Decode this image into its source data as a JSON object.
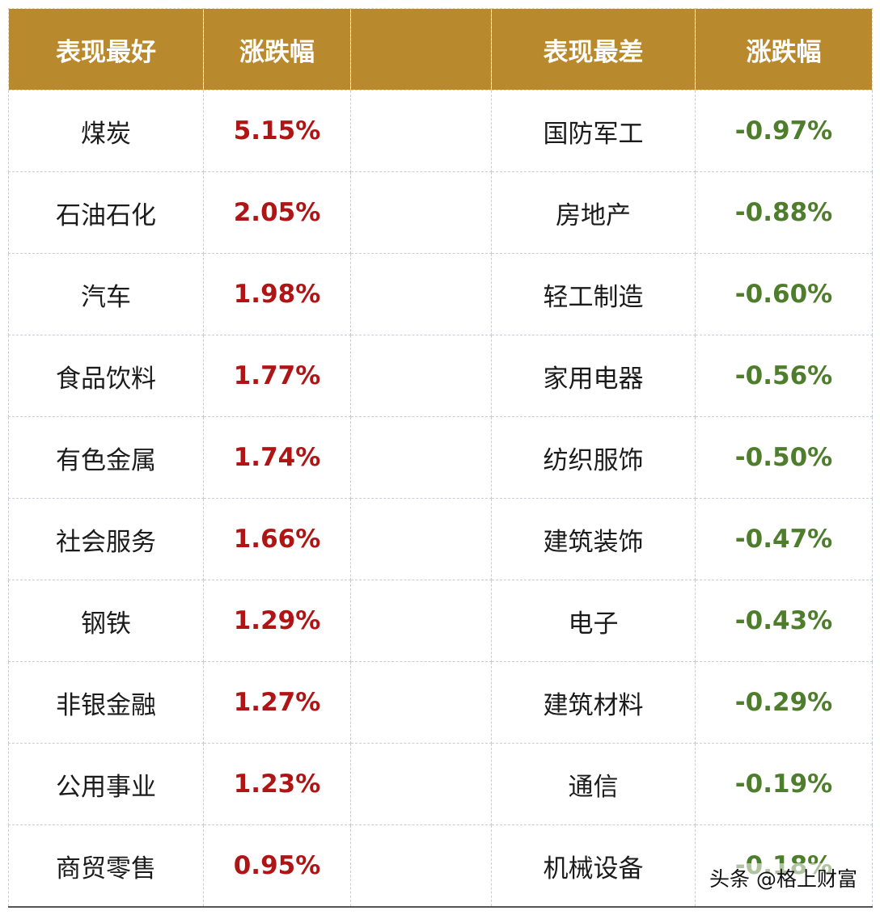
{
  "colors": {
    "header_bg": "#B98A2D",
    "header_text": "#FFFFFF",
    "gain_text": "#B01515",
    "loss_text": "#4E7D2C"
  },
  "headers": {
    "best": "表现最好",
    "best_change": "涨跌幅",
    "blank": "",
    "worst": "表现最差",
    "worst_change": "涨跌幅"
  },
  "rows": [
    {
      "best": "煤炭",
      "best_change": "5.15%",
      "worst": "国防军工",
      "worst_change": "-0.97%"
    },
    {
      "best": "石油石化",
      "best_change": "2.05%",
      "worst": "房地产",
      "worst_change": "-0.88%"
    },
    {
      "best": "汽车",
      "best_change": "1.98%",
      "worst": "轻工制造",
      "worst_change": "-0.60%"
    },
    {
      "best": "食品饮料",
      "best_change": "1.77%",
      "worst": "家用电器",
      "worst_change": "-0.56%"
    },
    {
      "best": "有色金属",
      "best_change": "1.74%",
      "worst": "纺织服饰",
      "worst_change": "-0.50%"
    },
    {
      "best": "社会服务",
      "best_change": "1.66%",
      "worst": "建筑装饰",
      "worst_change": "-0.47%"
    },
    {
      "best": "钢铁",
      "best_change": "1.29%",
      "worst": "电子",
      "worst_change": "-0.43%"
    },
    {
      "best": "非银金融",
      "best_change": "1.27%",
      "worst": "建筑材料",
      "worst_change": "-0.29%"
    },
    {
      "best": "公用事业",
      "best_change": "1.23%",
      "worst": "通信",
      "worst_change": "-0.19%"
    },
    {
      "best": "商贸零售",
      "best_change": "0.95%",
      "worst": "机械设备",
      "worst_change": "-0.18%"
    }
  ],
  "watermark": "头条 @格上财富"
}
